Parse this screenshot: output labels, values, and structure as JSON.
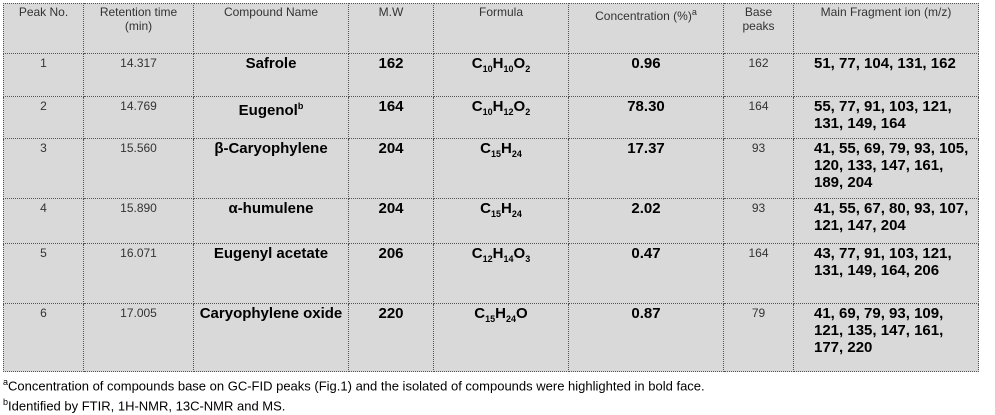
{
  "table": {
    "header": [
      "Peak No.",
      "Retention time (min)",
      "Compound Name",
      "M.W",
      "Formula",
      {
        "text": "Concentration (%)",
        "sup": "a"
      },
      "Base peaks",
      "Main Fragment ion (m/z)"
    ],
    "rows": [
      [
        "1",
        "14.317",
        {
          "text": "Safrole"
        },
        "162",
        [
          "C",
          "10",
          "H",
          "10",
          "O",
          "2"
        ],
        "0.96",
        "162",
        "51, 77, 104, 131, 162"
      ],
      [
        "2",
        "14.769",
        {
          "text": "Eugenol",
          "sup": "b"
        },
        "164",
        [
          "C",
          "10",
          "H",
          "12",
          "O",
          "2"
        ],
        "78.30",
        "164",
        "55, 77, 91, 103, 121, 131, 149, 164"
      ],
      [
        "3",
        "15.560",
        {
          "text": "β-Caryophylene"
        },
        "204",
        [
          "C",
          "15",
          "H",
          "24"
        ],
        "17.37",
        "93",
        "41, 55, 69, 79, 93, 105, 120, 133, 147, 161, 189, 204"
      ],
      [
        "4",
        "15.890",
        {
          "text": "α-humulene"
        },
        "204",
        [
          "C",
          "15",
          "H",
          "24"
        ],
        "2.02",
        "93",
        "41, 55, 67, 80, 93, 107, 121, 147, 204"
      ],
      [
        "5",
        "16.071",
        {
          "text": "Eugenyl acetate"
        },
        "206",
        [
          "C",
          "12",
          "H",
          "14",
          "O",
          "3"
        ],
        "0.47",
        "164",
        "43, 77, 91, 103, 121, 131, 149, 164, 206"
      ],
      [
        "6",
        "17.005",
        {
          "text": "Caryophylene oxide"
        },
        "220",
        [
          "C",
          "15",
          "H",
          "24",
          "O"
        ],
        "0.87",
        "79",
        "41, 69, 79, 93, 109, 121, 135, 147, 161, 177, 220"
      ]
    ]
  },
  "footnotes": [
    {
      "mark": "a",
      "text": "Concentration of compounds base on GC-FID peaks (Fig.1) and the isolated of compounds were highlighted in bold face."
    },
    {
      "mark": "b",
      "text": "Identified by FTIR, 1H-NMR, 13C-NMR and MS."
    }
  ]
}
